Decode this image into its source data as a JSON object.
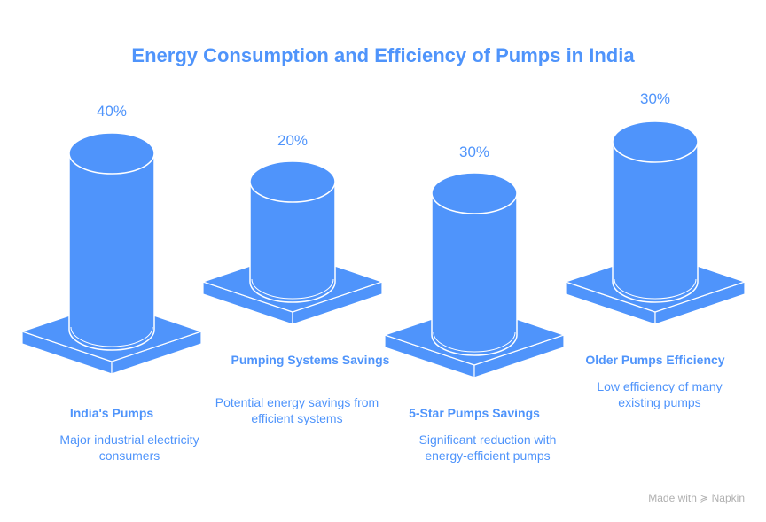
{
  "chart_data": {
    "type": "bar",
    "title": "Energy Consumption and Efficiency of Pumps in India",
    "categories": [
      "India's Pumps",
      "Pumping Systems Savings",
      "5-Star Pumps Savings",
      "Older Pumps Efficiency"
    ],
    "values": [
      40,
      20,
      30,
      30
    ],
    "value_labels": [
      "40%",
      "20%",
      "30%",
      "30%"
    ],
    "descriptions": [
      "Major industrial electricity consumers",
      "Potential energy savings from efficient systems",
      "Significant reduction with energy-efficient pumps",
      "Low efficiency of many existing pumps"
    ],
    "mark": "3d-cylinder",
    "color": "#4f94fb"
  },
  "watermark": "Made with ≽ Napkin"
}
